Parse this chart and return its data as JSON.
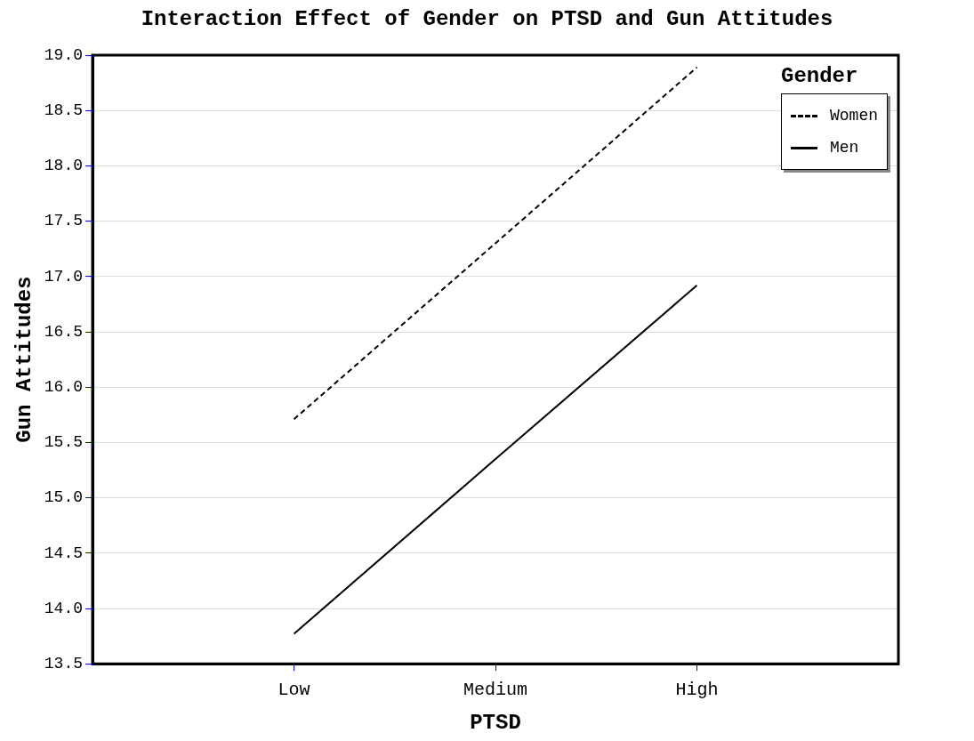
{
  "chart_data": {
    "type": "line",
    "title": "Interaction Effect of Gender on PTSD and Gun Attitudes",
    "xlabel": "PTSD",
    "ylabel": "Gun Attitudes",
    "legend_title": "Gender",
    "categories": [
      "Low",
      "Medium",
      "High"
    ],
    "series": [
      {
        "name": "Women",
        "color": "#000000",
        "line_style": "dashed",
        "values": [
          15.71,
          17.3,
          18.89
        ]
      },
      {
        "name": "Men",
        "color": "#000000",
        "line_style": "solid",
        "values": [
          13.77,
          15.35,
          16.92
        ]
      }
    ],
    "ylim": [
      13.5,
      19.0
    ],
    "yticks": [
      {
        "value": 13.5,
        "label": "13.5"
      },
      {
        "value": 14,
        "label": "14.0"
      },
      {
        "value": 14.5,
        "label": "14.5"
      },
      {
        "value": 15,
        "label": "15.0"
      },
      {
        "value": 15.5,
        "label": "15.5"
      },
      {
        "value": 16,
        "label": "16.0"
      },
      {
        "value": 16.5,
        "label": "16.5"
      },
      {
        "value": 17,
        "label": "17.0"
      },
      {
        "value": 17.5,
        "label": "17.5"
      },
      {
        "value": 18,
        "label": "18.0"
      },
      {
        "value": 18.5,
        "label": "18.5"
      },
      {
        "value": 19,
        "label": "19.0"
      }
    ],
    "grid": "y",
    "legend": "top right",
    "marker": "none"
  }
}
